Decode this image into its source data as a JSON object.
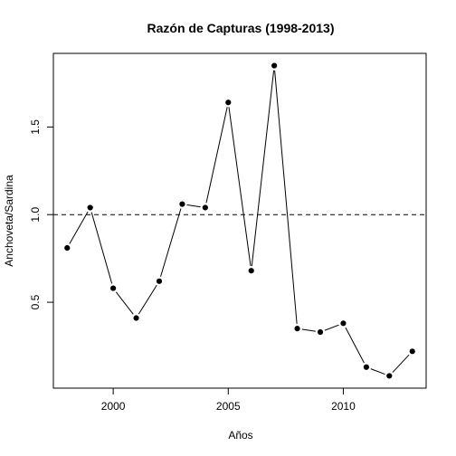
{
  "chart_data": {
    "type": "line",
    "title": "Razón de Capturas (1998-2013)",
    "xlabel": "Años",
    "ylabel": "Anchoveta/Sardina",
    "x": [
      1998,
      1999,
      2000,
      2001,
      2002,
      2003,
      2004,
      2005,
      2006,
      2007,
      2008,
      2009,
      2010,
      2011,
      2012,
      2013
    ],
    "y": [
      0.81,
      1.04,
      0.58,
      0.41,
      0.62,
      1.06,
      1.04,
      1.64,
      0.68,
      1.85,
      0.35,
      0.33,
      0.38,
      0.13,
      0.08,
      0.22
    ],
    "xlim": [
      1997.4,
      2013.6
    ],
    "ylim": [
      0.01,
      1.92
    ],
    "x_ticks": [
      2000,
      2005,
      2010
    ],
    "x_tick_labels": [
      "2000",
      "2005",
      "2010"
    ],
    "y_ticks": [
      0.5,
      1.0,
      1.5
    ],
    "y_tick_labels": [
      "0.5",
      "1.0",
      "1.5"
    ],
    "reference_line": {
      "y": 1.0,
      "style": "dashed"
    },
    "grid": false,
    "markers": "filled-circle",
    "line_color": "#000000"
  }
}
